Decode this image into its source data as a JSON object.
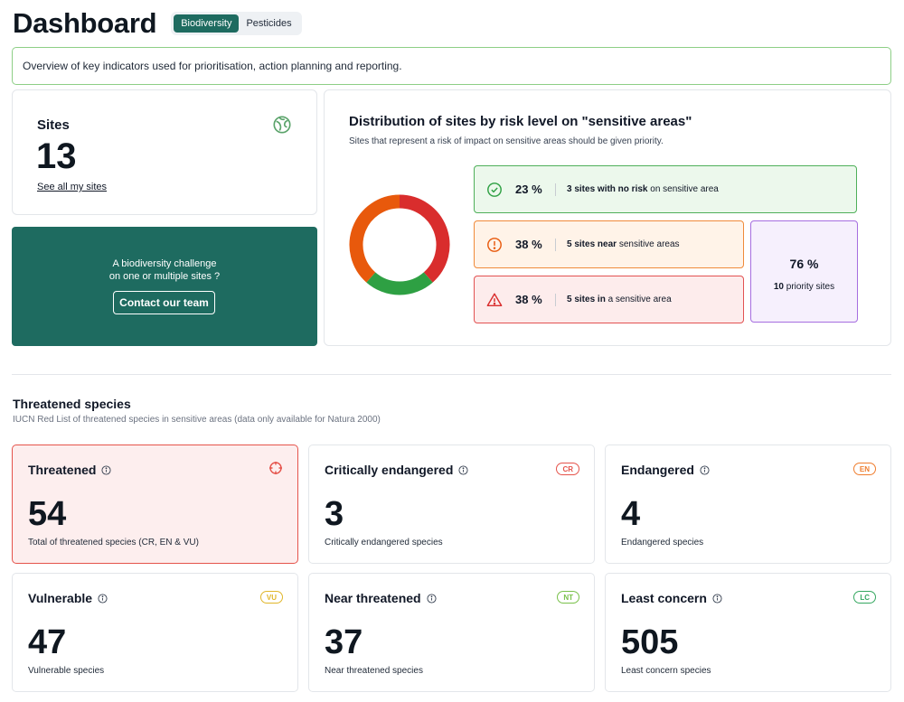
{
  "header": {
    "title": "Dashboard",
    "tabs": [
      {
        "label": "Biodiversity",
        "active": true
      },
      {
        "label": "Pesticides",
        "active": false
      }
    ]
  },
  "overview": "Overview of key indicators used for prioritisation, action planning and reporting.",
  "sites": {
    "title": "Sites",
    "count": "13",
    "link": "See all my sites",
    "icon": "globe-icon"
  },
  "contact": {
    "line1": "A biodiversity challenge",
    "line2": "on one or multiple sites ?",
    "button": "Contact our team"
  },
  "distribution": {
    "title": "Distribution of sites by risk level on \"sensitive areas\"",
    "subtitle": "Sites that represent a risk of impact on sensitive areas should be given priority.",
    "no_risk": {
      "pct": "23 %",
      "bold": "3 sites with no risk",
      "rest": " on sensitive area",
      "color": "#2ea043"
    },
    "near": {
      "pct": "38 %",
      "bold": "5 sites near",
      "rest": " sensitive areas",
      "color": "#e8590c"
    },
    "in": {
      "pct": "38 %",
      "bold": "5 sites in",
      "rest": " a sensitive area",
      "color": "#d92d2d"
    },
    "priority": {
      "pct": "76 %",
      "bold": "10",
      "rest": " priority sites"
    },
    "donut": [
      {
        "label": "in",
        "share": 0.385,
        "color": "#d92d2d"
      },
      {
        "label": "no risk",
        "share": 0.23,
        "color": "#2ea043"
      },
      {
        "label": "near",
        "share": 0.385,
        "color": "#e8590c"
      }
    ]
  },
  "species": {
    "title": "Threatened species",
    "subtitle": "IUCN Red List of threatened species in sensitive areas (data only available for Natura 2000)",
    "cards": [
      {
        "title": "Threatened",
        "value": "54",
        "desc": "Total of threatened species (CR, EN & VU)",
        "badge": "",
        "color": "#e5534b"
      },
      {
        "title": "Critically endangered",
        "value": "3",
        "desc": "Critically endangered species",
        "badge": "CR",
        "color": "#e5534b"
      },
      {
        "title": "Endangered",
        "value": "4",
        "desc": "Endangered species",
        "badge": "EN",
        "color": "#ef7d2e"
      },
      {
        "title": "Vulnerable",
        "value": "47",
        "desc": "Vulnerable species",
        "badge": "VU",
        "color": "#e0b62a"
      },
      {
        "title": "Near threatened",
        "value": "37",
        "desc": "Near threatened species",
        "badge": "NT",
        "color": "#79c14a"
      },
      {
        "title": "Least concern",
        "value": "505",
        "desc": "Least concern species",
        "badge": "LC",
        "color": "#36a861"
      }
    ]
  }
}
